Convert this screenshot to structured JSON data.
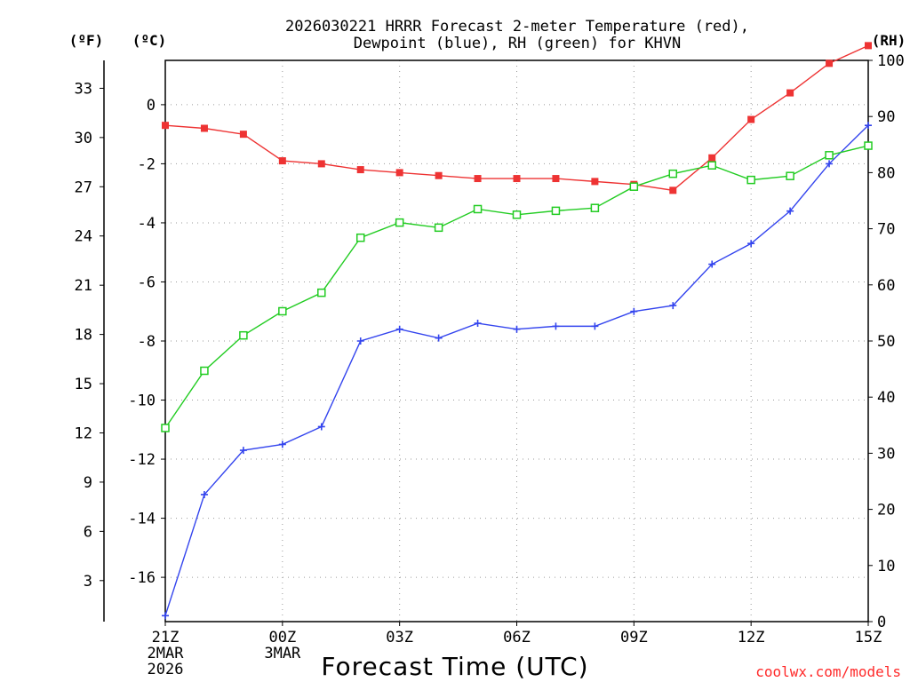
{
  "chart_data": {
    "type": "line",
    "title_line1": "2026030221 HRRR Forecast 2-meter Temperature (red),",
    "title_line2": "Dewpoint (blue), RH (green) for KHVN",
    "xlabel": "Forecast Time (UTC)",
    "credit": "coolwx.com/models",
    "x_hours": [
      0,
      1,
      2,
      3,
      4,
      5,
      6,
      7,
      8,
      9,
      10,
      11,
      12,
      13,
      14,
      15,
      16,
      17,
      18
    ],
    "x_ticks": [
      {
        "hour": 0,
        "label": "21Z",
        "sub1": "2MAR",
        "sub2": "2026"
      },
      {
        "hour": 3,
        "label": "00Z",
        "sub1": "3MAR",
        "sub2": ""
      },
      {
        "hour": 6,
        "label": "03Z",
        "sub1": "",
        "sub2": ""
      },
      {
        "hour": 9,
        "label": "06Z",
        "sub1": "",
        "sub2": ""
      },
      {
        "hour": 12,
        "label": "09Z",
        "sub1": "",
        "sub2": ""
      },
      {
        "hour": 15,
        "label": "12Z",
        "sub1": "",
        "sub2": ""
      },
      {
        "hour": 18,
        "label": "15Z",
        "sub1": "",
        "sub2": ""
      }
    ],
    "axes": {
      "fahrenheit": {
        "unit_label": "(ºF)",
        "ticks": [
          "3",
          "6",
          "9",
          "12",
          "15",
          "18",
          "21",
          "24",
          "27",
          "30",
          "33"
        ]
      },
      "celsius": {
        "unit_label": "(ºC)",
        "ylim": [
          -17.5,
          1.5
        ],
        "ticks": [
          "-16",
          "-14",
          "-12",
          "-10",
          "-8",
          "-6",
          "-4",
          "-2",
          "0"
        ]
      },
      "rh": {
        "unit_label": "(RH)",
        "ylim": [
          0,
          100
        ],
        "ticks": [
          "0",
          "10",
          "20",
          "30",
          "40",
          "50",
          "60",
          "70",
          "80",
          "90",
          "100"
        ]
      }
    },
    "series": [
      {
        "name": "2-meter Temperature",
        "color": "#ee3333",
        "axis": "celsius",
        "marker": "filled-square",
        "values": [
          -0.7,
          -0.8,
          -1.0,
          -1.9,
          -2.0,
          -2.2,
          -2.3,
          -2.4,
          -2.5,
          -2.5,
          -2.5,
          -2.6,
          -2.7,
          -2.9,
          -1.8,
          -0.5,
          0.4,
          1.4,
          2.0
        ]
      },
      {
        "name": "Dewpoint",
        "color": "#3344ee",
        "axis": "celsius",
        "marker": "plus",
        "values": [
          -17.3,
          -13.2,
          -11.7,
          -11.5,
          -10.9,
          -8.0,
          -7.6,
          -7.9,
          -7.4,
          -7.6,
          -7.5,
          -7.5,
          -7.0,
          -6.8,
          -5.4,
          -4.7,
          -3.6,
          -2.0,
          -0.7
        ]
      },
      {
        "name": "RH",
        "color": "#22cc22",
        "axis": "rh",
        "marker": "open-square",
        "values": [
          34.5,
          44.7,
          51.0,
          55.3,
          58.6,
          68.4,
          71.1,
          70.2,
          73.5,
          72.5,
          73.2,
          73.7,
          77.5,
          79.8,
          81.3,
          78.7,
          79.4,
          83.1,
          84.8
        ]
      }
    ]
  }
}
